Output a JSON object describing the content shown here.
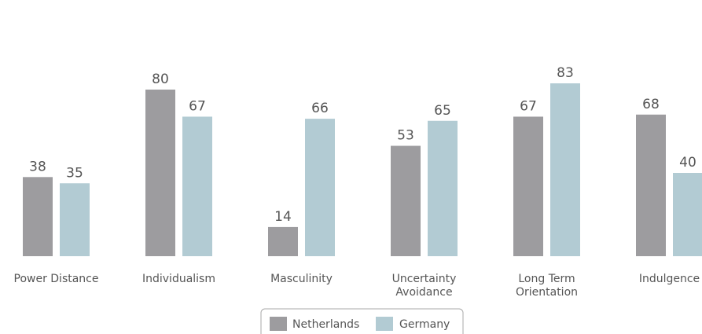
{
  "chart_data": {
    "type": "bar",
    "categories": [
      [
        "Power Distance"
      ],
      [
        "Individualism"
      ],
      [
        "Masculinity"
      ],
      [
        "Uncertainty",
        "Avoidance"
      ],
      [
        "Long Term",
        "Orientation"
      ],
      [
        "Indulgence"
      ]
    ],
    "series": [
      {
        "name": "Netherlands",
        "color": "#9d9c9f",
        "values": [
          38,
          80,
          14,
          53,
          67,
          68
        ]
      },
      {
        "name": "Germany",
        "color": "#b2cbd3",
        "values": [
          35,
          67,
          66,
          65,
          83,
          40
        ]
      }
    ],
    "ylim": [
      0,
      100
    ],
    "grid": false,
    "legend": "bottom-center"
  }
}
